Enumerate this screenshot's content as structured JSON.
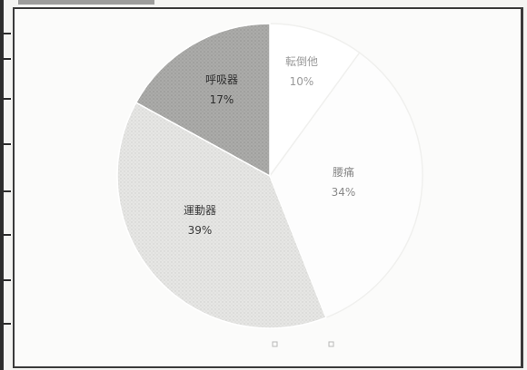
{
  "chart_data": {
    "type": "pie",
    "slices": [
      {
        "label": "転倒他",
        "value": 10,
        "value_label": "10%",
        "color": "#ffffff",
        "text_color": "#9a9a9a"
      },
      {
        "label": "腰痛",
        "value": 34,
        "value_label": "34%",
        "color": "#fdfdfd",
        "text_color": "#8a8a8a"
      },
      {
        "label": "運動器",
        "value": 39,
        "value_label": "39%",
        "color": "#e2e2e0",
        "text_color": "#3a3a3a"
      },
      {
        "label": "呼吸器",
        "value": 17,
        "value_label": "17%",
        "color": "#a9a9a7",
        "text_color": "#2e2e2e"
      }
    ],
    "legend": {
      "placement": "bottom",
      "entries": []
    }
  }
}
